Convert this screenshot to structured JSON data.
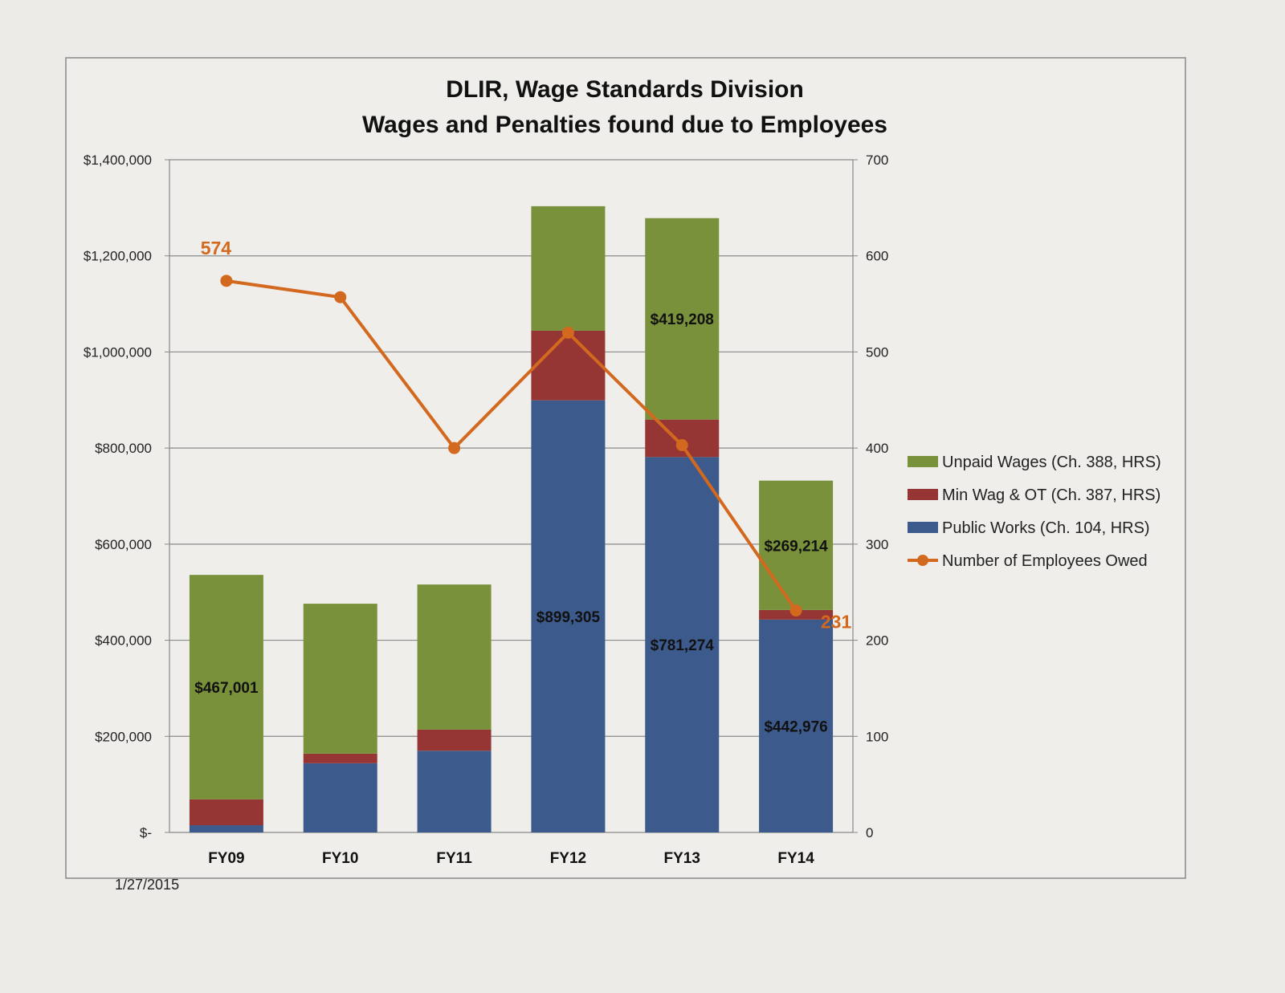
{
  "chart_data": {
    "type": "bar",
    "stacked": true,
    "title": [
      "DLIR, Wage Standards Division",
      "Wages and Penalties found due to Employees"
    ],
    "categories": [
      "FY09",
      "FY10",
      "FY11",
      "FY12",
      "FY13",
      "FY14"
    ],
    "ylim": [
      0,
      1400000
    ],
    "yticks": [
      0,
      200000,
      400000,
      600000,
      800000,
      1000000,
      1200000,
      1400000
    ],
    "ytick_labels": [
      "$-",
      "$200,000",
      "$400,000",
      "$600,000",
      "$800,000",
      "$1,000,000",
      "$1,200,000",
      "$1,400,000"
    ],
    "y2lim": [
      0,
      700
    ],
    "y2ticks": [
      0,
      100,
      200,
      300,
      400,
      500,
      600,
      700
    ],
    "y2tick_labels": [
      "0",
      "100",
      "200",
      "300",
      "400",
      "500",
      "600",
      "700"
    ],
    "grid": true,
    "legend_position": "right",
    "series": [
      {
        "name": "Public Works   (Ch. 104, HRS)",
        "color": "#3c5b8c",
        "values": [
          15000,
          144000,
          170000,
          899305,
          781274,
          442976
        ],
        "data_labels": [
          null,
          null,
          null,
          "$899,305",
          "$781,274",
          "$442,976"
        ]
      },
      {
        "name": "Min Wag & OT (Ch. 387, HRS)",
        "color": "#963634",
        "values": [
          54000,
          20000,
          44000,
          145000,
          78000,
          20000
        ],
        "data_labels": [
          null,
          null,
          null,
          null,
          null,
          null
        ]
      },
      {
        "name": "Unpaid Wages (Ch. 388, HRS)",
        "color": "#78913a",
        "values": [
          467001,
          312000,
          302000,
          259000,
          419208,
          269214
        ],
        "data_labels": [
          "$467,001",
          null,
          null,
          null,
          "$419,208",
          "$269,214"
        ]
      }
    ],
    "line_series": {
      "name": "Number of Employees Owed",
      "color": "#d2691e",
      "axis": "right",
      "values": [
        574,
        557,
        400,
        520,
        403,
        231
      ],
      "data_labels": [
        "574",
        null,
        null,
        null,
        null,
        "231"
      ]
    },
    "legend_order": [
      "Unpaid Wages (Ch. 388, HRS)",
      "Min Wag & OT (Ch. 387, HRS)",
      "Public Works   (Ch. 104, HRS)",
      "Number of Employees Owed"
    ]
  },
  "footer": {
    "date": "1/27/2015"
  }
}
